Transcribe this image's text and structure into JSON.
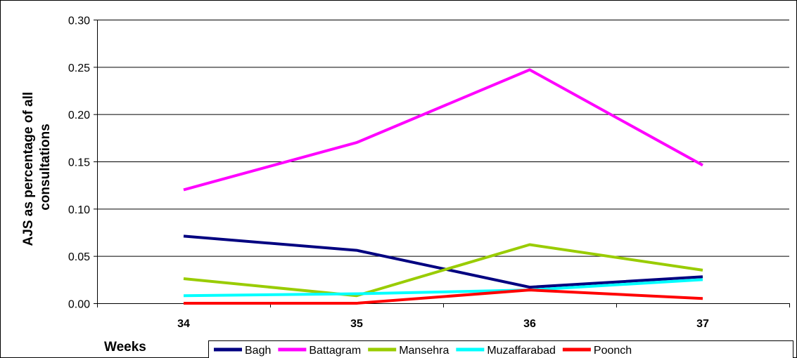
{
  "chart_data": {
    "type": "line",
    "xlabel": "Weeks",
    "ylabel_lines": [
      "AJS as percentage of all",
      "consultations"
    ],
    "categories": [
      "34",
      "35",
      "36",
      "37"
    ],
    "ylim": [
      0,
      0.3
    ],
    "yticks": [
      "0.00",
      "0.05",
      "0.10",
      "0.15",
      "0.20",
      "0.25",
      "0.30"
    ],
    "grid": true,
    "legend_position": "bottom",
    "series": [
      {
        "name": "Bagh",
        "color": "#000080",
        "values": [
          0.071,
          0.056,
          0.017,
          0.028
        ]
      },
      {
        "name": "Battagram",
        "color": "#ff00ff",
        "values": [
          0.12,
          0.17,
          0.247,
          0.146
        ]
      },
      {
        "name": "Mansehra",
        "color": "#99cc00",
        "values": [
          0.026,
          0.008,
          0.062,
          0.035
        ]
      },
      {
        "name": "Muzaffarabad",
        "color": "#00ffff",
        "values": [
          0.008,
          0.01,
          0.014,
          0.025
        ]
      },
      {
        "name": "Poonch",
        "color": "#ff0000",
        "values": [
          0.0,
          0.0,
          0.014,
          0.005
        ]
      }
    ]
  }
}
